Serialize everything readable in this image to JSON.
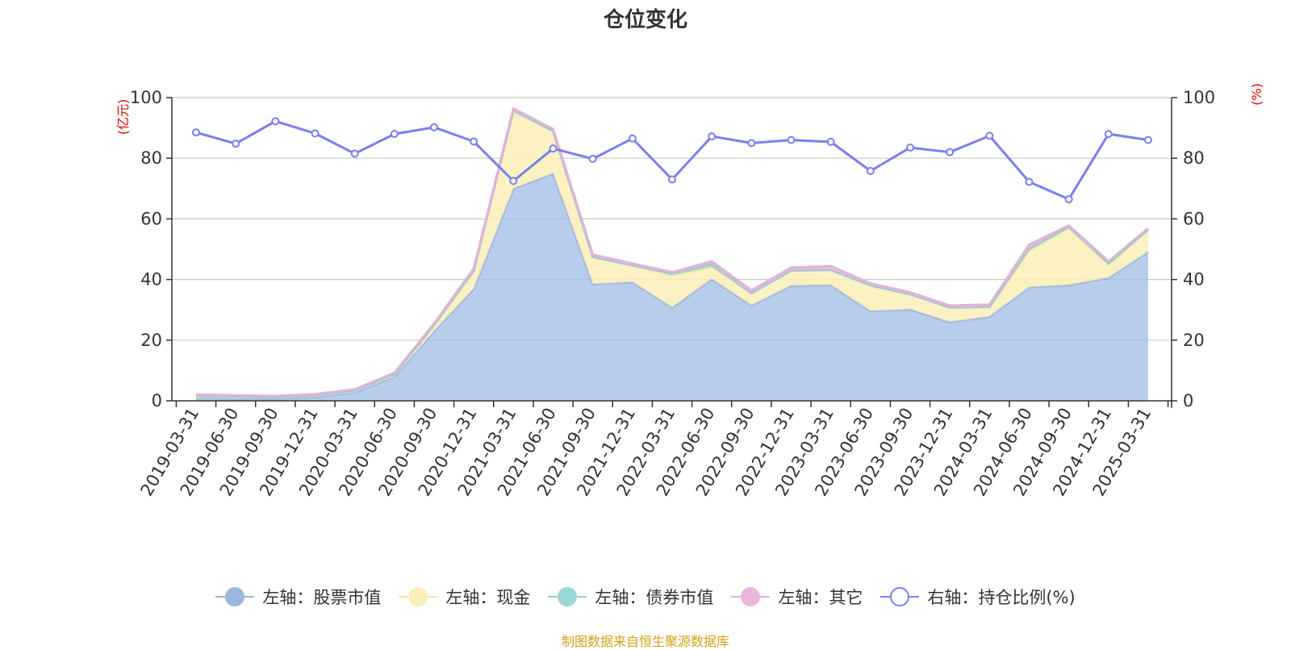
{
  "chart_data": {
    "type": "area",
    "title": "仓位变化",
    "ylabel_left": "(亿元)",
    "ylabel_right": "(%)",
    "ylim_left": [
      0,
      100
    ],
    "ylim_right": [
      0,
      100
    ],
    "yticks_left": [
      "0",
      "20",
      "40",
      "60",
      "80",
      "100"
    ],
    "yticks_right": [
      "0",
      "20",
      "40",
      "60",
      "80",
      "100"
    ],
    "grid": true,
    "legend_position": "bottom",
    "categories": [
      "2019-03-31",
      "2019-06-30",
      "2019-09-30",
      "2019-12-31",
      "2020-03-31",
      "2020-06-30",
      "2020-09-30",
      "2020-12-31",
      "2021-03-31",
      "2021-06-30",
      "2021-09-30",
      "2021-12-31",
      "2022-03-31",
      "2022-06-30",
      "2022-09-30",
      "2022-12-31",
      "2023-03-31",
      "2023-06-30",
      "2023-09-30",
      "2023-12-31",
      "2024-03-31",
      "2024-06-30",
      "2024-09-30",
      "2024-12-31",
      "2025-03-31"
    ],
    "series": [
      {
        "name": "左轴：股票市值",
        "axis": "left",
        "kind": "stacked-area",
        "color": "#a4bee6",
        "line_color": "#9bb6df",
        "values": [
          1.0,
          0.8,
          0.7,
          1.2,
          2.8,
          8.0,
          23.0,
          37.0,
          70.0,
          75.0,
          38.5,
          39.2,
          30.8,
          40.2,
          31.5,
          38.0,
          38.2,
          29.6,
          30.2,
          26.0,
          27.8,
          37.5,
          38.2,
          40.6,
          49.2
        ]
      },
      {
        "name": "左轴：现金",
        "axis": "left",
        "kind": "stacked-area",
        "color": "#faeeb8",
        "line_color": "#f6e6a0",
        "values": [
          0.7,
          0.6,
          0.5,
          0.6,
          0.6,
          0.8,
          2.0,
          6.0,
          25.8,
          14.0,
          9.0,
          5.5,
          10.6,
          4.0,
          4.0,
          5.0,
          5.0,
          8.5,
          5.0,
          4.8,
          3.2,
          12.0,
          18.8,
          4.3,
          7.3
        ]
      },
      {
        "name": "左轴：债券市值",
        "axis": "left",
        "kind": "stacked-area",
        "color": "#9bd8d4",
        "line_color": "#8fcfcf",
        "values": [
          0,
          0,
          0,
          0,
          0,
          0,
          0,
          0,
          0,
          0,
          0,
          0,
          0.6,
          1.0,
          0,
          0,
          0,
          0,
          0,
          0,
          0,
          0.8,
          0.4,
          0.5,
          0
        ]
      },
      {
        "name": "左轴：其它",
        "axis": "left",
        "kind": "stacked-area",
        "color": "#e8b7dc",
        "line_color": "#e3b2d8",
        "values": [
          0.4,
          0.4,
          0.4,
          0.4,
          0.4,
          0.4,
          0.5,
          0.6,
          0.6,
          0.6,
          0.7,
          0.6,
          0.4,
          0.8,
          0.9,
          0.9,
          1.2,
          0.6,
          0.6,
          0.6,
          0.7,
          1.2,
          0.4,
          0.6,
          0.4
        ]
      },
      {
        "name": "右轴：持仓比例(%)",
        "axis": "right",
        "kind": "line",
        "color": "#7b7ef0",
        "values": [
          88.5,
          84.8,
          92.2,
          88.2,
          81.5,
          88.0,
          90.2,
          85.5,
          72.5,
          83.2,
          79.8,
          86.5,
          73.0,
          87.2,
          85.0,
          86.0,
          85.4,
          75.8,
          83.5,
          82.0,
          87.4,
          72.2,
          66.5,
          88.0,
          86.0
        ]
      }
    ],
    "source_note": "制图数据来自恒生聚源数据库",
    "colors": {
      "grid": "#c8c8c8",
      "axis": "#333333",
      "axis_name": "#e00000",
      "text": "#333333",
      "note": "#d4a017"
    }
  },
  "legend": [
    {
      "label": "左轴：股票市值",
      "swatch_fill": "#9bb6df",
      "swatch_line": "#9bb6df",
      "hollow": false
    },
    {
      "label": "左轴：现金",
      "swatch_fill": "#faeeb8",
      "swatch_line": "#f6e6a0",
      "hollow": false
    },
    {
      "label": "左轴：债券市值",
      "swatch_fill": "#9bd8d4",
      "swatch_line": "#8fcfcf",
      "hollow": false
    },
    {
      "label": "左轴：其它",
      "swatch_fill": "#e8b7dc",
      "swatch_line": "#e3b2d8",
      "hollow": false
    },
    {
      "label": "右轴：持仓比例(%)",
      "swatch_fill": "#ffffff",
      "swatch_line": "#7b7ef0",
      "hollow": true
    }
  ]
}
